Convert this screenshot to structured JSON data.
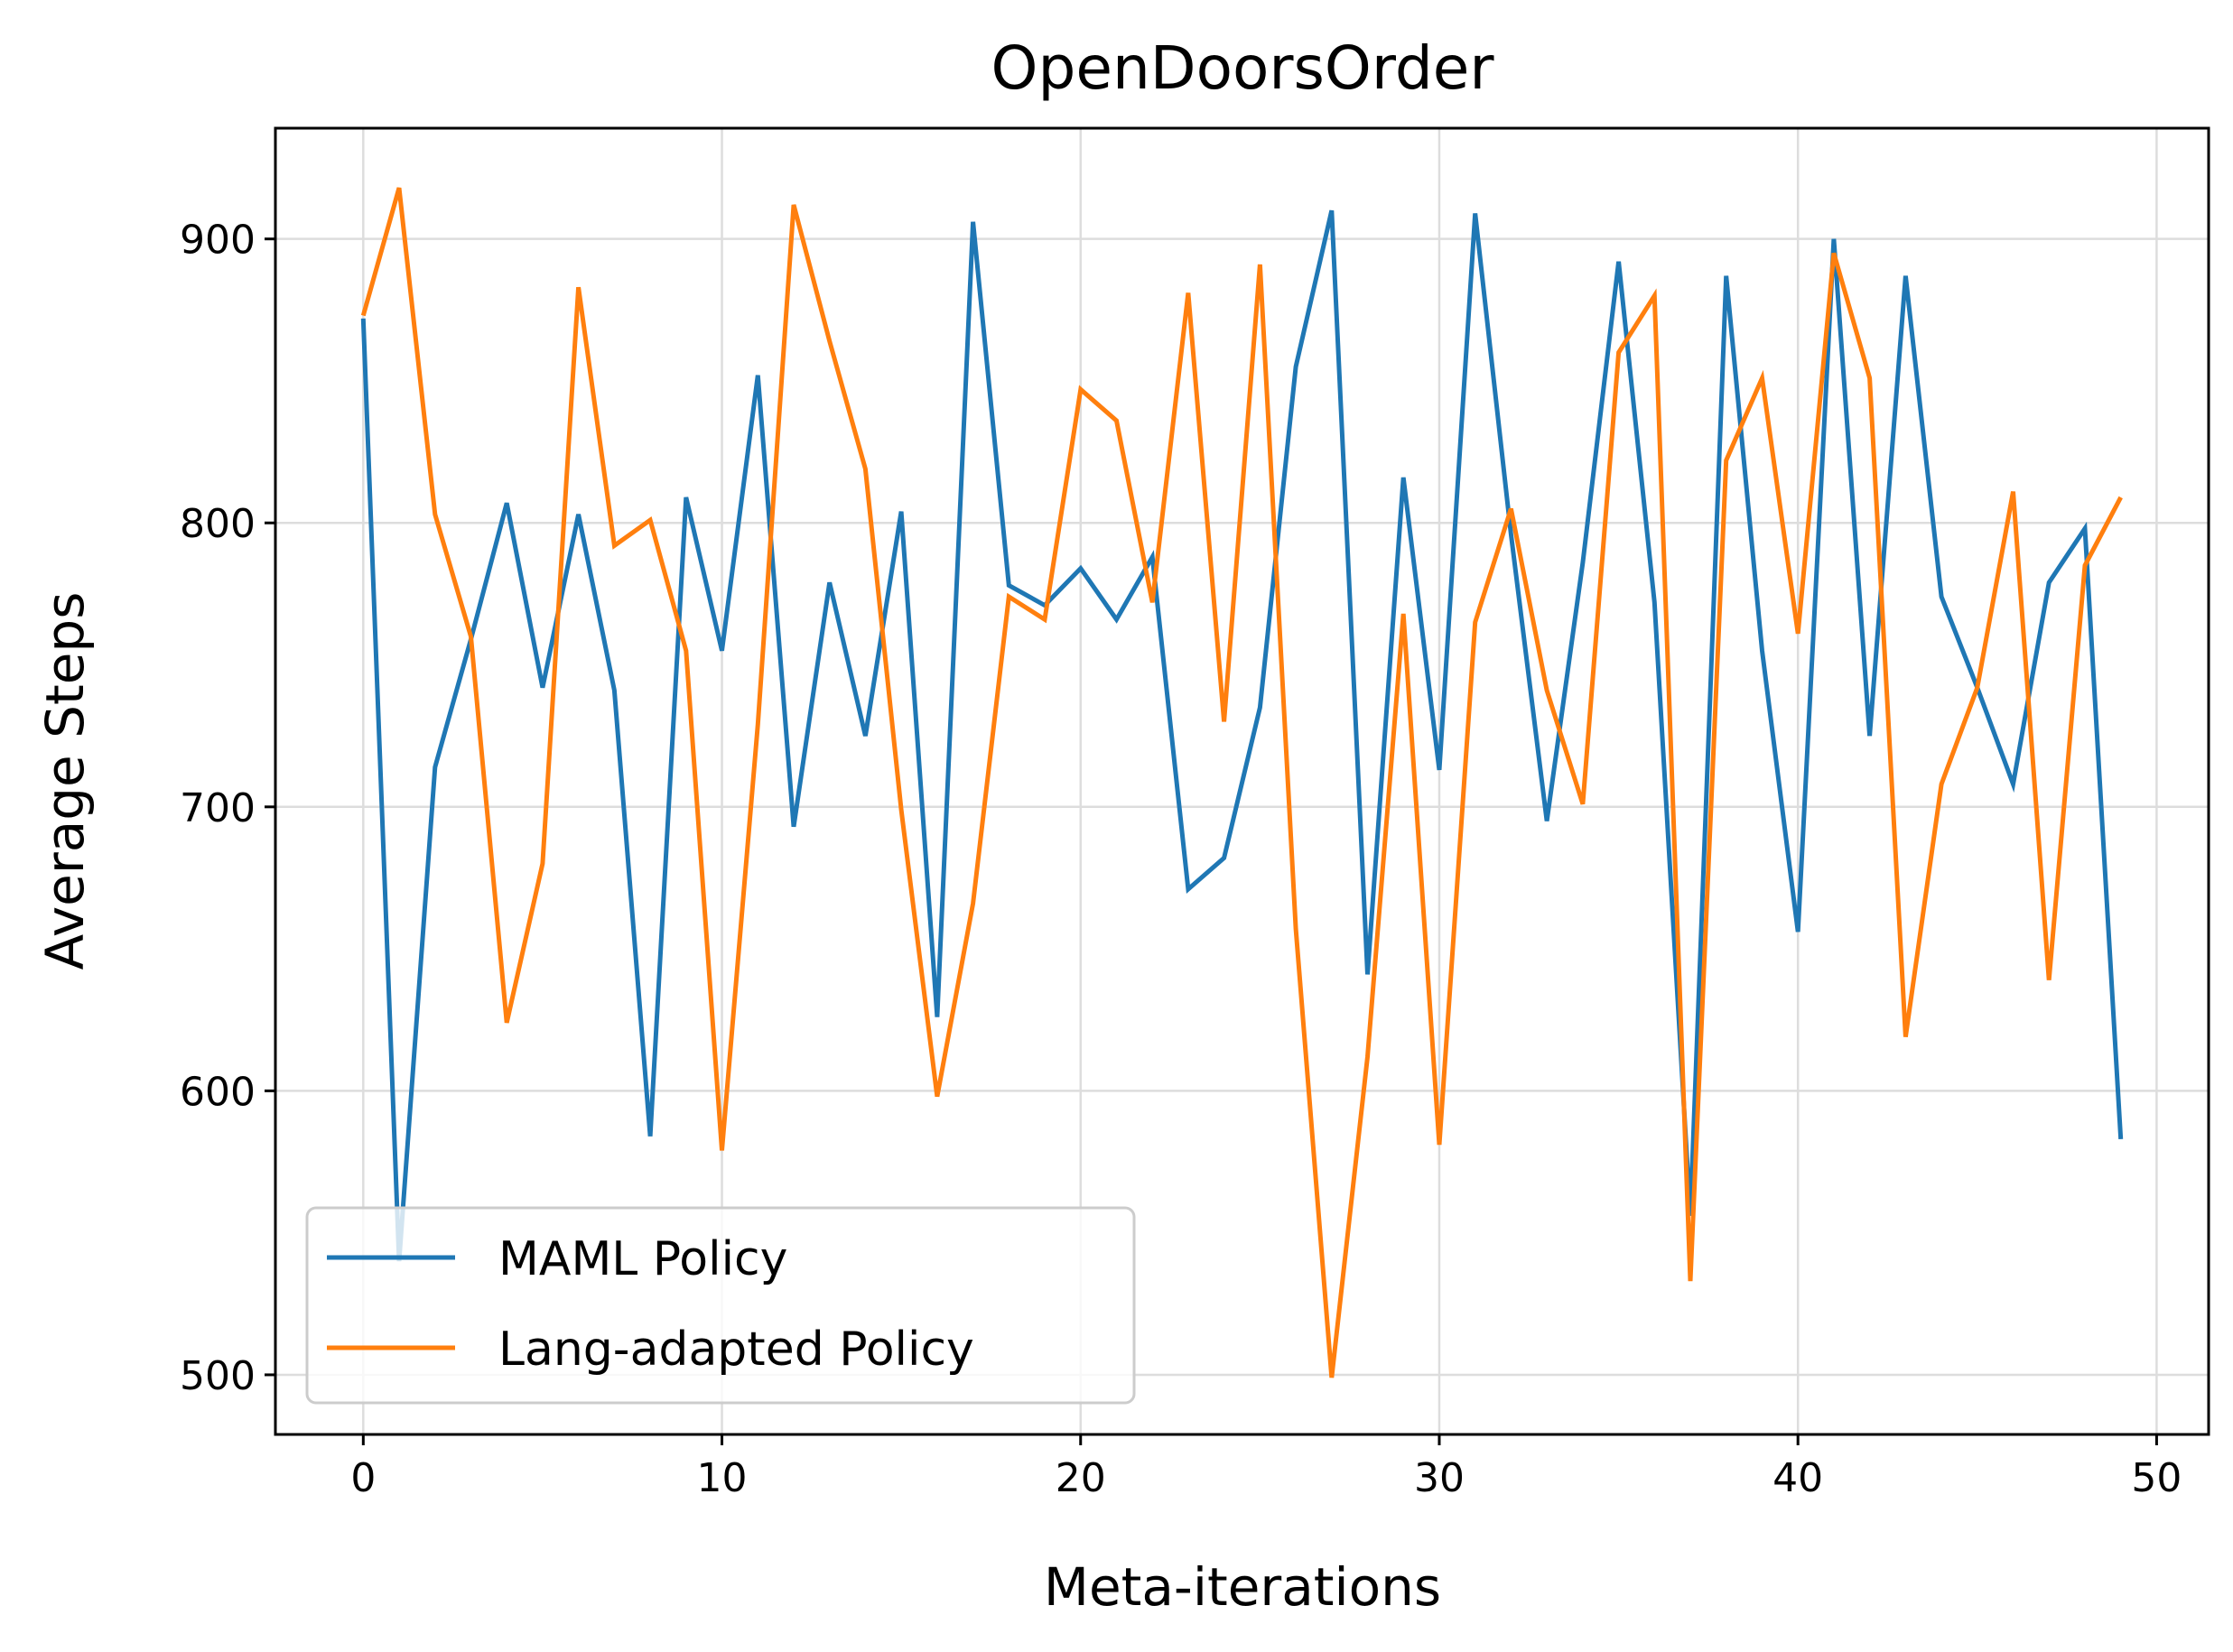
{
  "chart_data": {
    "type": "line",
    "title": "OpenDoorsOrder",
    "xlabel": "Meta-iterations",
    "ylabel": "Average Steps",
    "xlim": [
      -2.45,
      51.45
    ],
    "ylim": [
      479,
      939
    ],
    "xticks": [
      0,
      10,
      20,
      30,
      40,
      50
    ],
    "yticks": [
      500,
      600,
      700,
      800,
      900
    ],
    "xtick_labels": [
      "0",
      "10",
      "20",
      "30",
      "40",
      "50"
    ],
    "ytick_labels": [
      "500",
      "600",
      "700",
      "800",
      "900"
    ],
    "grid": true,
    "legend_position": "lower-left",
    "x": [
      0,
      1,
      2,
      3,
      4,
      5,
      6,
      7,
      8,
      9,
      10,
      11,
      12,
      13,
      14,
      15,
      16,
      17,
      18,
      19,
      20,
      21,
      22,
      23,
      24,
      25,
      26,
      27,
      28,
      29,
      30,
      31,
      32,
      33,
      34,
      35,
      36,
      37,
      38,
      39,
      40,
      41,
      42,
      43,
      44,
      45,
      46,
      47,
      48,
      49
    ],
    "series": [
      {
        "name": "MAML Policy",
        "color": "#1f77b4",
        "values": [
          872,
          540,
          714,
          759,
          807,
          742,
          803,
          741,
          584,
          809,
          755,
          852,
          693,
          779,
          725,
          804,
          626,
          906,
          778,
          771,
          784,
          766,
          788,
          671,
          682,
          735,
          855,
          910,
          641,
          816,
          713,
          909,
          796,
          695,
          786,
          892,
          772,
          556,
          887,
          755,
          656,
          900,
          725,
          887,
          774,
          742,
          708,
          779,
          798,
          583
        ]
      },
      {
        "name": "Lang-adapted Policy",
        "color": "#ff7f0e",
        "values": [
          873,
          918,
          803,
          760,
          624,
          680,
          883,
          792,
          801,
          755,
          579,
          729,
          912,
          864,
          819,
          699,
          598,
          666,
          774,
          766,
          847,
          836,
          772,
          881,
          730,
          891,
          657,
          499,
          612,
          768,
          581,
          765,
          805,
          741,
          701,
          860,
          880,
          533,
          822,
          851,
          761,
          895,
          851,
          619,
          708,
          742,
          811,
          639,
          785,
          809
        ]
      }
    ]
  }
}
